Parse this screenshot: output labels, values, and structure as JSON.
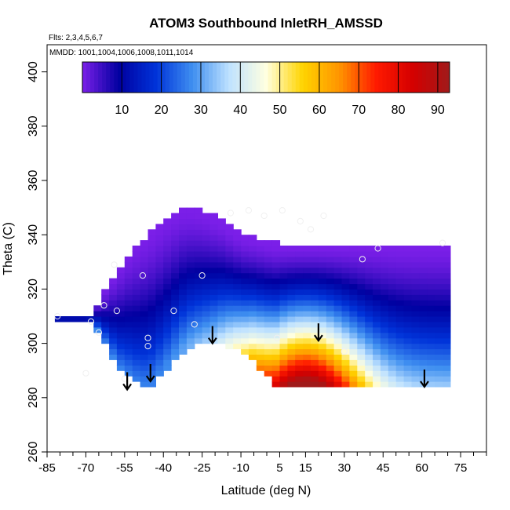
{
  "chart_data": {
    "type": "heatmap",
    "title": "ATOM3 Southbound InletRH_AMSSD",
    "flights_note": "Flts: 2,3,4,5,6,7",
    "dates_note": "MMDD: 1001,1004,1006,1008,1011,1014",
    "xlabel": "Latitude (deg N)",
    "ylabel": "Theta (C)",
    "xlim": [
      -85,
      85
    ],
    "ylim": [
      260,
      410
    ],
    "x_ticks": [
      "-85",
      "-70",
      "-55",
      "-40",
      "-25",
      "-10",
      "5",
      "15",
      "30",
      "45",
      "60",
      "75"
    ],
    "y_ticks": [
      "260",
      "280",
      "300",
      "320",
      "340",
      "360",
      "380",
      "400"
    ],
    "colorbar": {
      "range": [
        0,
        93
      ],
      "ticks": [
        "10",
        "20",
        "30",
        "40",
        "50",
        "60",
        "70",
        "80",
        "90"
      ],
      "colors": [
        "#7b1fe8",
        "#0000a0",
        "#0033d9",
        "#3f8ff0",
        "#bfe2ff",
        "#ffffe0",
        "#ffd400",
        "#ff9400",
        "#ff1a00",
        "#d40000",
        "#a01a1a"
      ]
    },
    "field_grid": {
      "lat_step": 4,
      "lat_start": -69,
      "theta_step": 2,
      "theta_start": 283,
      "lower_boundary_theta": [
        308,
        303,
        295,
        289,
        287,
        285,
        286,
        290,
        294,
        298,
        300,
        300,
        300,
        300,
        299,
        296,
        293,
        288,
        284
      ],
      "upper_boundary_theta": [
        310,
        317,
        323,
        329,
        334,
        338,
        341,
        344,
        347,
        349,
        349,
        348,
        346,
        344,
        341,
        339,
        338,
        337,
        336
      ]
    },
    "sample_points": [
      {
        "lat": -81,
        "theta": 310
      },
      {
        "lat": -68,
        "theta": 308
      },
      {
        "lat": -65,
        "theta": 304
      },
      {
        "lat": -63,
        "theta": 314
      },
      {
        "lat": -59,
        "theta": 329
      },
      {
        "lat": -58,
        "theta": 312
      },
      {
        "lat": -55,
        "theta": 287
      },
      {
        "lat": -48,
        "theta": 325
      },
      {
        "lat": -46,
        "theta": 302
      },
      {
        "lat": -46,
        "theta": 299
      },
      {
        "lat": -36,
        "theta": 312
      },
      {
        "lat": -28,
        "theta": 307
      },
      {
        "lat": -25,
        "theta": 325
      },
      {
        "lat": -14,
        "theta": 348
      },
      {
        "lat": -7,
        "theta": 349
      },
      {
        "lat": -1,
        "theta": 347
      },
      {
        "lat": 4,
        "theta": 302
      },
      {
        "lat": 6,
        "theta": 349
      },
      {
        "lat": 13,
        "theta": 345
      },
      {
        "lat": 17,
        "theta": 342
      },
      {
        "lat": 22,
        "theta": 347
      },
      {
        "lat": 30,
        "theta": 297
      },
      {
        "lat": 37,
        "theta": 331
      },
      {
        "lat": 43,
        "theta": 335
      },
      {
        "lat": 68,
        "theta": 337
      },
      {
        "lat": -70,
        "theta": 289
      }
    ],
    "arrows": [
      {
        "lat": -54,
        "theta": 283
      },
      {
        "lat": -45,
        "theta": 286
      },
      {
        "lat": -21,
        "theta": 300
      },
      {
        "lat": 20,
        "theta": 301
      },
      {
        "lat": 61,
        "theta": 284
      }
    ]
  }
}
